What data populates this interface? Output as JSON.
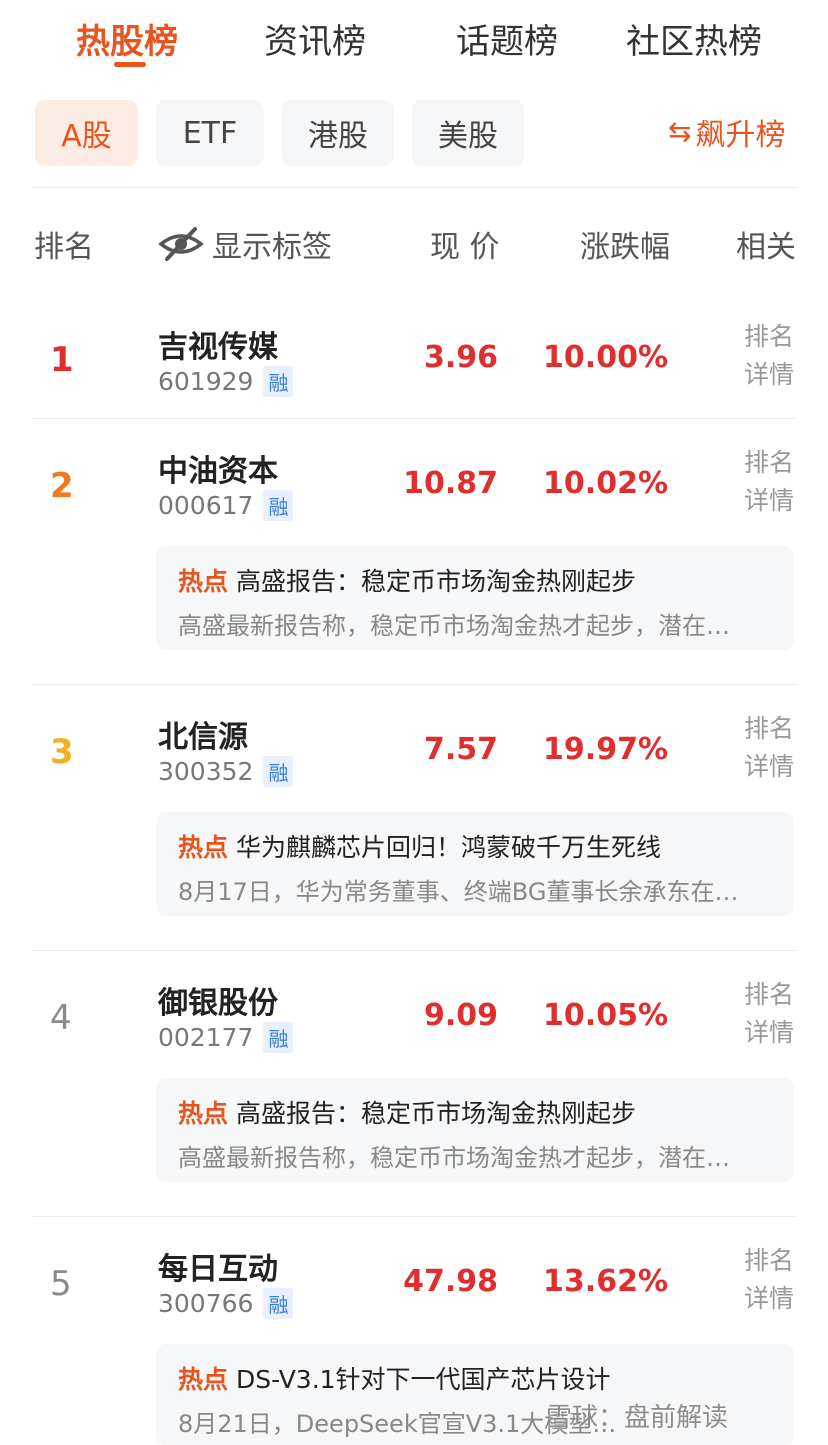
{
  "top_tabs": [
    "热股榜",
    "资讯榜",
    "话题榜",
    "社区热榜"
  ],
  "markets": [
    "A股",
    "ETF",
    "港股",
    "美股"
  ],
  "rise_label": "飙升榜",
  "columns": {
    "rank": "排名",
    "show_tags": "显示标签",
    "price": "现 价",
    "change": "涨跌幅",
    "related": "相关"
  },
  "detail_label": [
    "排名",
    "详情"
  ],
  "hot_tag": "热点",
  "badge": "融",
  "stocks": [
    {
      "rank": "1",
      "name": "吉视传媒",
      "code": "601929",
      "price": "3.96",
      "change": "10.00%"
    },
    {
      "rank": "2",
      "name": "中油资本",
      "code": "000617",
      "price": "10.87",
      "change": "10.02%",
      "hot_title": "高盛报告：稳定币市场淘金热刚起步",
      "hot_desc": "高盛最新报告称，稳定币市场淘金热才起步，潜在…"
    },
    {
      "rank": "3",
      "name": "北信源",
      "code": "300352",
      "price": "7.57",
      "change": "19.97%",
      "hot_title": "华为麒麟芯片回归！鸿蒙破千万生死线",
      "hot_desc": "8月17日，华为常务董事、终端BG董事长余承东在…"
    },
    {
      "rank": "4",
      "name": "御银股份",
      "code": "002177",
      "price": "9.09",
      "change": "10.05%",
      "hot_title": "高盛报告：稳定币市场淘金热刚起步",
      "hot_desc": "高盛最新报告称，稳定币市场淘金热才起步，潜在…"
    },
    {
      "rank": "5",
      "name": "每日互动",
      "code": "300766",
      "price": "47.98",
      "change": "13.62%",
      "hot_title": "DS-V3.1针对下一代国产芯片设计",
      "hot_desc": "8月21日，DeepSeek官宣V3.1大模型…"
    }
  ],
  "watermark": "雪球：盘前解读",
  "colors": {
    "accent": "#e8541e",
    "up": "#e02e2e",
    "rank1": "#e02e2e",
    "rank2": "#f07a20",
    "rank3": "#efb227"
  }
}
